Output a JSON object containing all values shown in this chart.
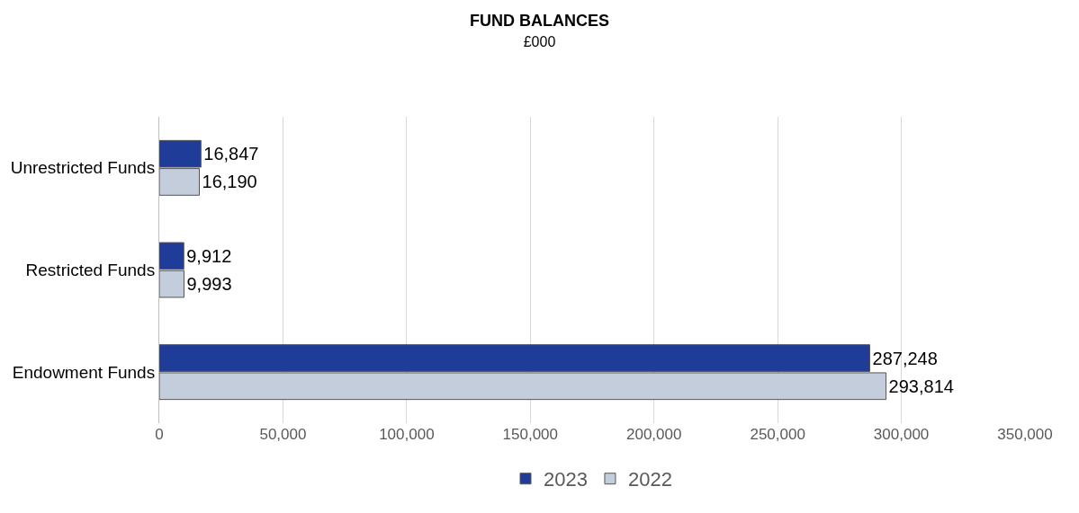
{
  "chart_data": {
    "type": "bar",
    "orientation": "horizontal",
    "title": "FUND BALANCES",
    "subtitle": "£000",
    "categories": [
      "Unrestricted Funds",
      "Restricted Funds",
      "Endowment Funds"
    ],
    "series": [
      {
        "name": "2023",
        "color": "#1f3c99",
        "values": [
          16847,
          9912,
          287248
        ],
        "value_labels": [
          "16,847",
          "9,912",
          "287,248"
        ]
      },
      {
        "name": "2022",
        "color": "#c3cddb",
        "values": [
          16190,
          9993,
          293814
        ],
        "value_labels": [
          "16,190",
          "9,993",
          "293,814"
        ]
      }
    ],
    "xlim": [
      0,
      350000
    ],
    "xticks": [
      0,
      {
        "value": 50000,
        "label": "50,000"
      },
      {
        "value": 100000,
        "label": "100,000"
      },
      {
        "value": 150000,
        "label": "150,000"
      },
      {
        "value": 200000,
        "label": "200,000"
      },
      {
        "value": 250000,
        "label": "250,000"
      },
      {
        "value": 300000,
        "label": "300,000"
      },
      {
        "value": 350000,
        "label": "350,000"
      }
    ],
    "grid": "x",
    "legend": "bottom"
  }
}
